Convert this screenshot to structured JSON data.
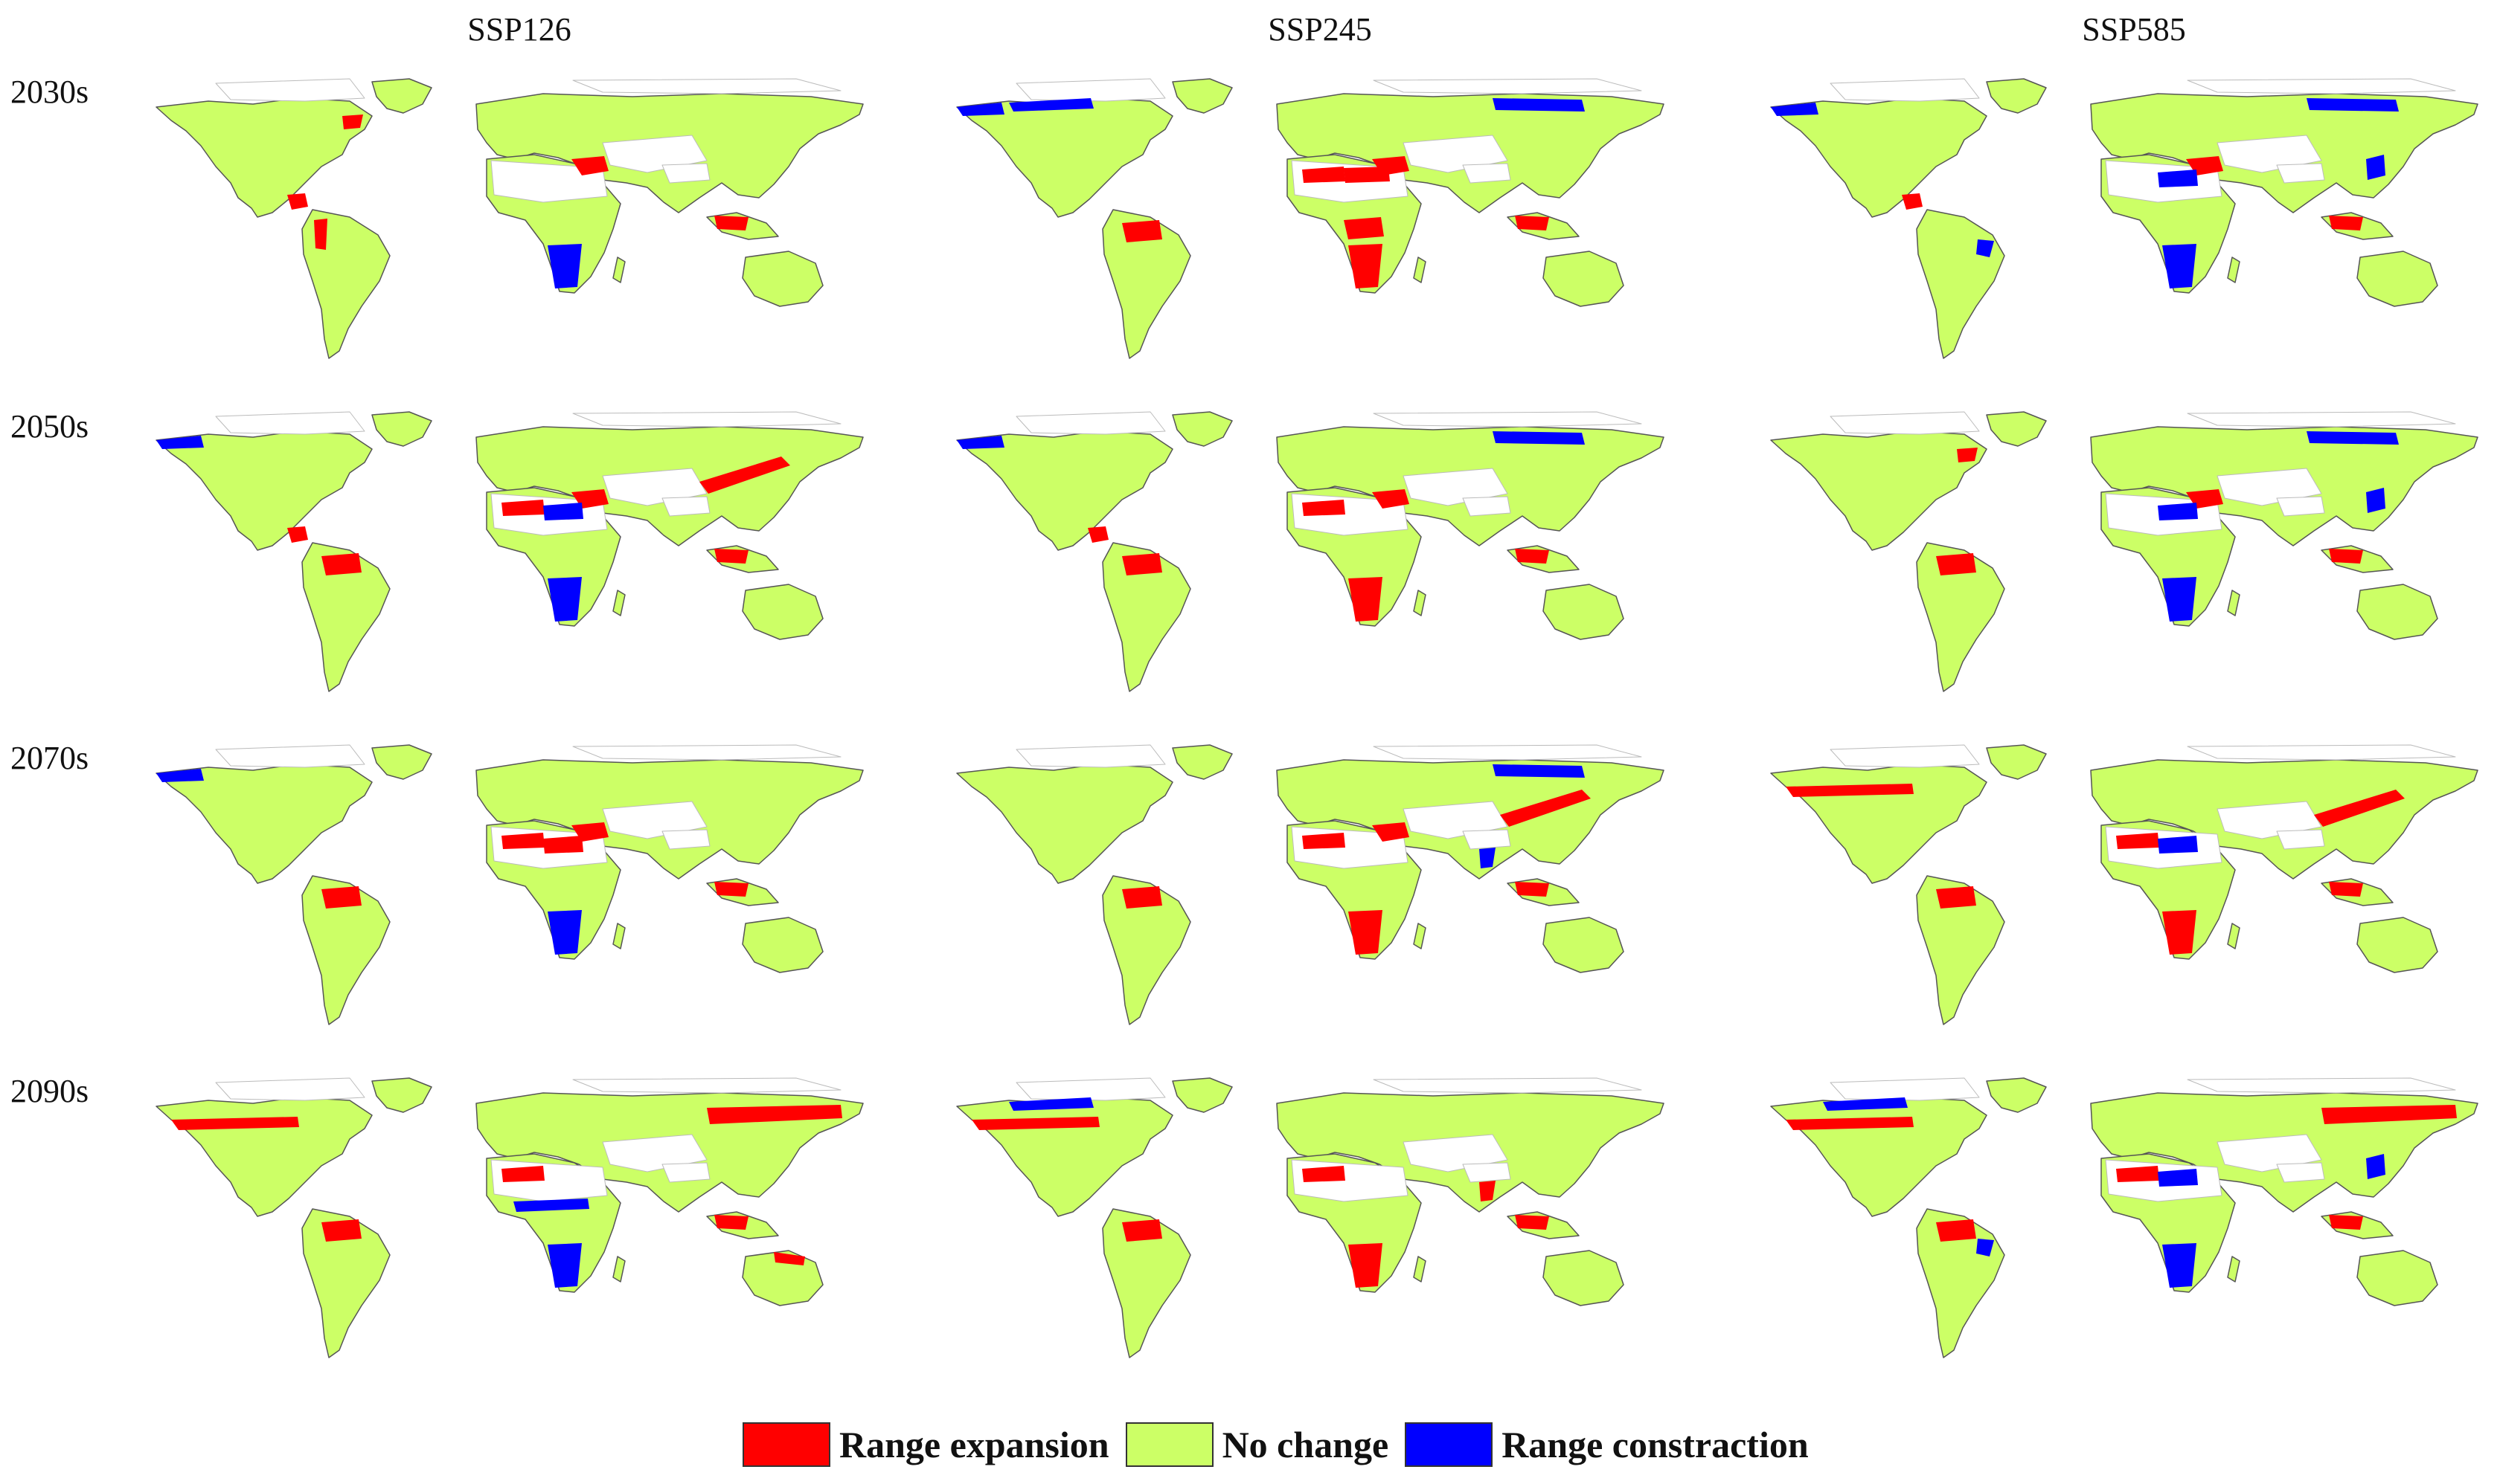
{
  "columns": [
    "SSP126",
    "SSP245",
    "SSP585"
  ],
  "rows": [
    "2030s",
    "2050s",
    "2070s",
    "2090s"
  ],
  "legend": [
    {
      "label": "Range expansion",
      "color": "#ff0000"
    },
    {
      "label": "No change",
      "color": "#ccff66"
    },
    {
      "label": "Range constraction",
      "color": "#0000ff"
    }
  ],
  "colors": {
    "land": "#ccff66",
    "outline": "#555555",
    "expansion": "#ff0000",
    "contraction": "#0000ff",
    "unsuitable": "#ffffff"
  },
  "map_layers": {
    "SSP126": {
      "2030s": {
        "expansion": [
          "iran",
          "central-america",
          "andes",
          "seasia",
          "canada-east"
        ],
        "contraction": [
          "southern-africa"
        ]
      },
      "2050s": {
        "expansion": [
          "sahara-west",
          "iran",
          "central-america",
          "amazon",
          "seasia",
          "eastasia-band"
        ],
        "contraction": [
          "arabia",
          "southern-africa",
          "alaska"
        ]
      },
      "2070s": {
        "expansion": [
          "sahara-west",
          "arabia",
          "iran",
          "amazon",
          "seasia"
        ],
        "contraction": [
          "southern-africa",
          "alaska"
        ]
      },
      "2090s": {
        "expansion": [
          "north-america-band",
          "siberia-band",
          "sahara-west",
          "amazon",
          "seasia",
          "australia-north"
        ],
        "contraction": [
          "sahel",
          "southern-africa"
        ]
      }
    },
    "SSP245": {
      "2030s": {
        "expansion": [
          "sahara-west",
          "sahara-east",
          "central-africa",
          "southern-africa",
          "amazon",
          "iran",
          "seasia"
        ],
        "contraction": [
          "alaska",
          "canada-north",
          "siberia-north"
        ]
      },
      "2050s": {
        "expansion": [
          "sahara-west",
          "central-america",
          "amazon",
          "seasia",
          "iran",
          "southern-africa"
        ],
        "contraction": [
          "siberia-north",
          "alaska"
        ]
      },
      "2070s": {
        "expansion": [
          "sahara-west",
          "iran",
          "eastasia-band",
          "amazon",
          "southern-africa",
          "seasia"
        ],
        "contraction": [
          "siberia-north",
          "india"
        ]
      },
      "2090s": {
        "expansion": [
          "north-america-band",
          "sahara-west",
          "amazon",
          "southern-africa",
          "seasia",
          "india"
        ],
        "contraction": [
          "canada-north"
        ]
      }
    },
    "SSP585": {
      "2030s": {
        "expansion": [
          "iran",
          "central-america",
          "seasia"
        ],
        "contraction": [
          "alaska",
          "siberia-north",
          "arabia",
          "southern-africa",
          "brazil-east",
          "china-east"
        ]
      },
      "2050s": {
        "expansion": [
          "iran",
          "amazon",
          "seasia",
          "canada-east"
        ],
        "contraction": [
          "arabia",
          "southern-africa",
          "siberia-north",
          "china-east"
        ]
      },
      "2070s": {
        "expansion": [
          "north-america-band",
          "sahara-west",
          "eastasia-band",
          "amazon",
          "southern-africa",
          "seasia"
        ],
        "contraction": [
          "arabia"
        ]
      },
      "2090s": {
        "expansion": [
          "north-america-band",
          "sahara-west",
          "amazon",
          "seasia",
          "siberia-band"
        ],
        "contraction": [
          "arabia",
          "southern-africa",
          "canada-north",
          "china-east",
          "brazil-east"
        ]
      }
    }
  }
}
